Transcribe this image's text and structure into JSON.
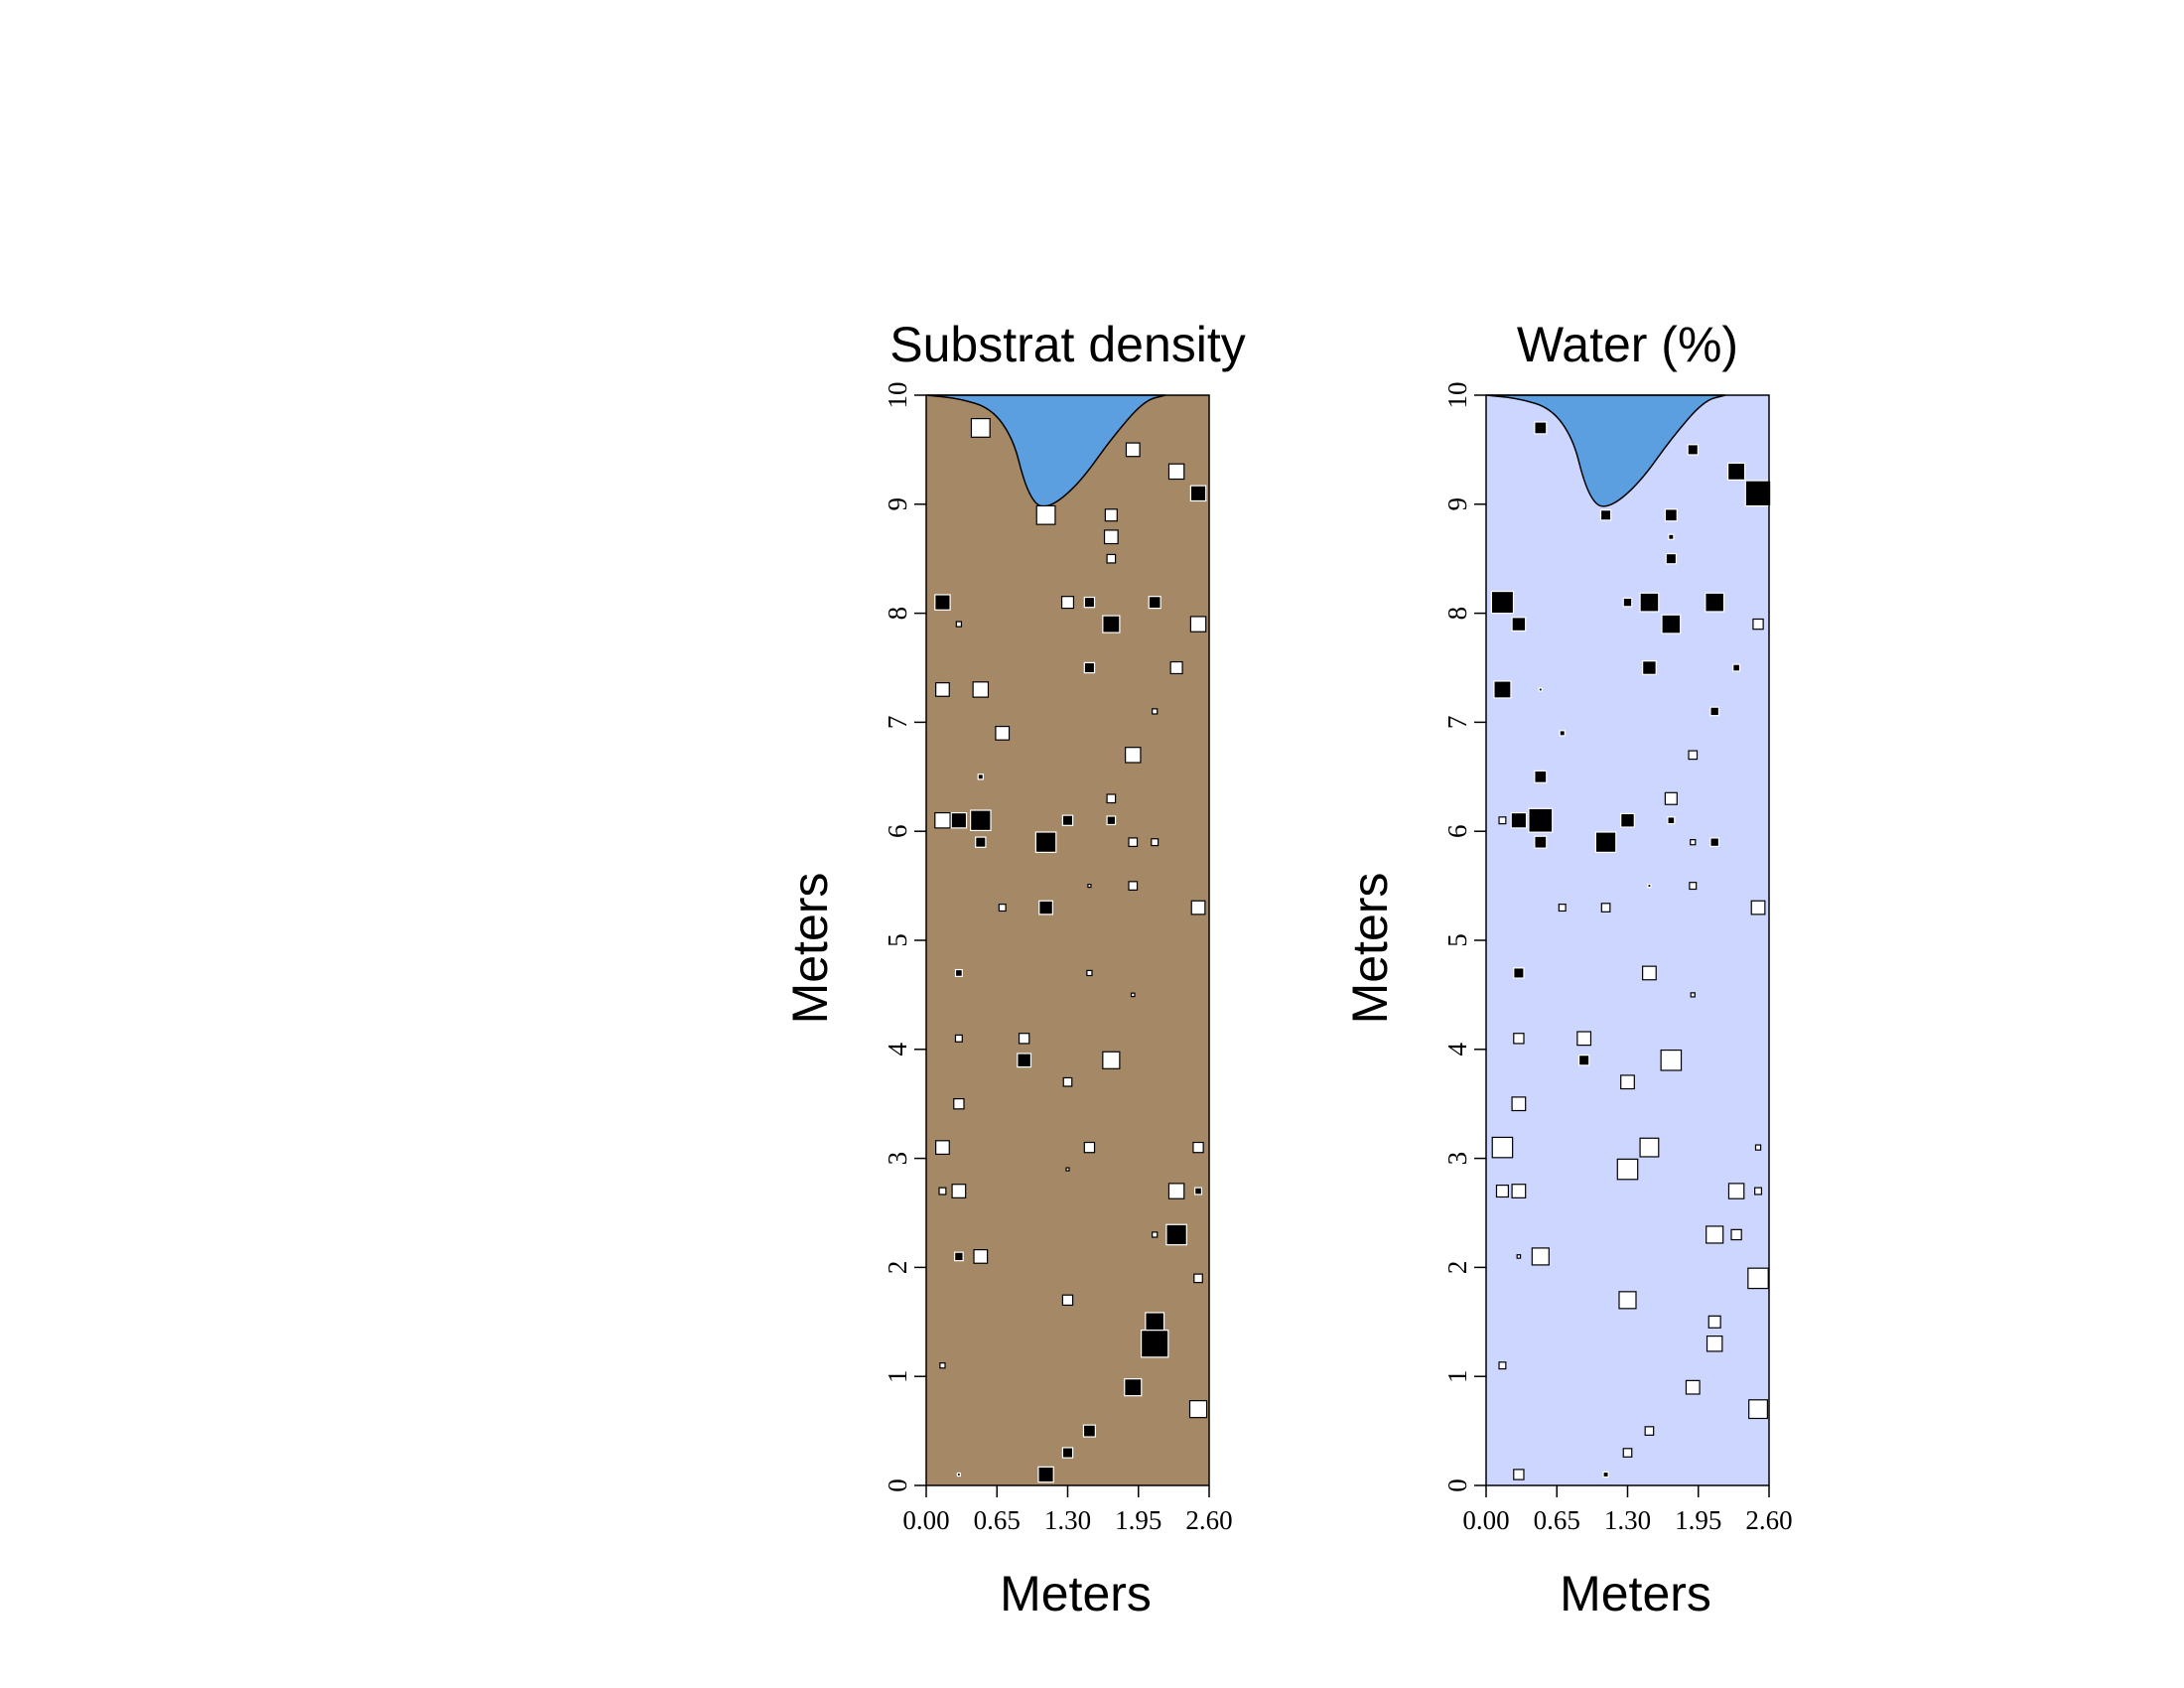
{
  "colors": {
    "substrate_bg": "#A58966",
    "water_bg": "#CCD6FF",
    "pit_fill": "#5B9FE0",
    "positive": "#000000",
    "negative": "#FFFFFF",
    "outline": "#000000"
  },
  "chart_data": [
    {
      "type": "scatter",
      "title": "Substrat density",
      "xlabel": "Meters",
      "ylabel": "Meters",
      "xlim": [
        0,
        2.6
      ],
      "ylim": [
        0,
        10
      ],
      "xticks": [
        "0.00",
        "0.65",
        "1.30",
        "1.95",
        "2.60"
      ],
      "yticks": [
        "0",
        "1",
        "2",
        "3",
        "4",
        "5",
        "6",
        "7",
        "8",
        "9",
        "10"
      ],
      "marker": "square",
      "size_meaning": "relative magnitude 0-1; black = above mean, white = below mean",
      "background": "substrate_bg",
      "pit_profile": [
        [
          0.0,
          10.0
        ],
        [
          0.3,
          9.97
        ],
        [
          0.6,
          9.88
        ],
        [
          0.8,
          9.6
        ],
        [
          0.9,
          9.2
        ],
        [
          1.0,
          9.0
        ],
        [
          1.1,
          8.97
        ],
        [
          1.25,
          9.05
        ],
        [
          1.45,
          9.25
        ],
        [
          1.7,
          9.6
        ],
        [
          2.0,
          9.95
        ],
        [
          2.2,
          10.0
        ]
      ],
      "points": [
        {
          "x": 0.5,
          "y": 9.7,
          "size": 0.55,
          "sign": "neg"
        },
        {
          "x": 1.9,
          "y": 9.5,
          "size": 0.4,
          "sign": "neg"
        },
        {
          "x": 2.3,
          "y": 9.3,
          "size": 0.45,
          "sign": "neg"
        },
        {
          "x": 2.5,
          "y": 9.1,
          "size": 0.45,
          "sign": "pos"
        },
        {
          "x": 1.1,
          "y": 8.9,
          "size": 0.55,
          "sign": "neg"
        },
        {
          "x": 1.7,
          "y": 8.9,
          "size": 0.35,
          "sign": "neg"
        },
        {
          "x": 1.7,
          "y": 8.7,
          "size": 0.4,
          "sign": "neg"
        },
        {
          "x": 1.7,
          "y": 8.5,
          "size": 0.25,
          "sign": "neg"
        },
        {
          "x": 0.15,
          "y": 8.1,
          "size": 0.45,
          "sign": "pos"
        },
        {
          "x": 1.3,
          "y": 8.1,
          "size": 0.35,
          "sign": "neg"
        },
        {
          "x": 1.5,
          "y": 8.1,
          "size": 0.3,
          "sign": "pos"
        },
        {
          "x": 2.1,
          "y": 8.1,
          "size": 0.35,
          "sign": "pos"
        },
        {
          "x": 0.3,
          "y": 7.9,
          "size": 0.15,
          "sign": "neg"
        },
        {
          "x": 1.7,
          "y": 7.9,
          "size": 0.5,
          "sign": "pos"
        },
        {
          "x": 2.5,
          "y": 7.9,
          "size": 0.45,
          "sign": "neg"
        },
        {
          "x": 1.5,
          "y": 7.5,
          "size": 0.3,
          "sign": "pos"
        },
        {
          "x": 2.3,
          "y": 7.5,
          "size": 0.35,
          "sign": "neg"
        },
        {
          "x": 0.15,
          "y": 7.3,
          "size": 0.4,
          "sign": "neg"
        },
        {
          "x": 0.5,
          "y": 7.3,
          "size": 0.45,
          "sign": "neg"
        },
        {
          "x": 2.1,
          "y": 7.1,
          "size": 0.15,
          "sign": "neg"
        },
        {
          "x": 0.7,
          "y": 6.9,
          "size": 0.4,
          "sign": "neg"
        },
        {
          "x": 1.9,
          "y": 6.7,
          "size": 0.45,
          "sign": "neg"
        },
        {
          "x": 0.5,
          "y": 6.5,
          "size": 0.15,
          "sign": "pos"
        },
        {
          "x": 1.7,
          "y": 6.3,
          "size": 0.25,
          "sign": "neg"
        },
        {
          "x": 0.15,
          "y": 6.1,
          "size": 0.45,
          "sign": "neg"
        },
        {
          "x": 0.3,
          "y": 6.1,
          "size": 0.45,
          "sign": "pos"
        },
        {
          "x": 0.5,
          "y": 6.1,
          "size": 0.6,
          "sign": "pos"
        },
        {
          "x": 1.3,
          "y": 6.1,
          "size": 0.3,
          "sign": "pos"
        },
        {
          "x": 1.7,
          "y": 6.1,
          "size": 0.25,
          "sign": "pos"
        },
        {
          "x": 0.5,
          "y": 5.9,
          "size": 0.3,
          "sign": "pos"
        },
        {
          "x": 1.1,
          "y": 5.9,
          "size": 0.6,
          "sign": "pos"
        },
        {
          "x": 1.9,
          "y": 5.9,
          "size": 0.25,
          "sign": "neg"
        },
        {
          "x": 2.1,
          "y": 5.9,
          "size": 0.2,
          "sign": "neg"
        },
        {
          "x": 1.5,
          "y": 5.5,
          "size": 0.08,
          "sign": "neg"
        },
        {
          "x": 1.9,
          "y": 5.5,
          "size": 0.25,
          "sign": "neg"
        },
        {
          "x": 0.7,
          "y": 5.3,
          "size": 0.2,
          "sign": "neg"
        },
        {
          "x": 1.1,
          "y": 5.3,
          "size": 0.4,
          "sign": "pos"
        },
        {
          "x": 2.5,
          "y": 5.3,
          "size": 0.4,
          "sign": "neg"
        },
        {
          "x": 0.3,
          "y": 4.7,
          "size": 0.2,
          "sign": "pos"
        },
        {
          "x": 1.5,
          "y": 4.7,
          "size": 0.15,
          "sign": "neg"
        },
        {
          "x": 1.9,
          "y": 4.5,
          "size": 0.1,
          "sign": "neg"
        },
        {
          "x": 0.3,
          "y": 4.1,
          "size": 0.2,
          "sign": "neg"
        },
        {
          "x": 0.9,
          "y": 4.1,
          "size": 0.3,
          "sign": "neg"
        },
        {
          "x": 0.9,
          "y": 3.9,
          "size": 0.4,
          "sign": "pos"
        },
        {
          "x": 1.7,
          "y": 3.9,
          "size": 0.5,
          "sign": "neg"
        },
        {
          "x": 1.3,
          "y": 3.7,
          "size": 0.25,
          "sign": "neg"
        },
        {
          "x": 0.3,
          "y": 3.5,
          "size": 0.3,
          "sign": "neg"
        },
        {
          "x": 0.15,
          "y": 3.1,
          "size": 0.4,
          "sign": "neg"
        },
        {
          "x": 1.5,
          "y": 3.1,
          "size": 0.3,
          "sign": "neg"
        },
        {
          "x": 2.5,
          "y": 3.1,
          "size": 0.3,
          "sign": "neg"
        },
        {
          "x": 1.3,
          "y": 2.9,
          "size": 0.08,
          "sign": "neg"
        },
        {
          "x": 0.15,
          "y": 2.7,
          "size": 0.2,
          "sign": "neg"
        },
        {
          "x": 0.3,
          "y": 2.7,
          "size": 0.4,
          "sign": "neg"
        },
        {
          "x": 2.3,
          "y": 2.7,
          "size": 0.45,
          "sign": "neg"
        },
        {
          "x": 2.5,
          "y": 2.7,
          "size": 0.2,
          "sign": "pos"
        },
        {
          "x": 2.1,
          "y": 2.3,
          "size": 0.15,
          "sign": "neg"
        },
        {
          "x": 2.3,
          "y": 2.3,
          "size": 0.6,
          "sign": "pos"
        },
        {
          "x": 0.3,
          "y": 2.1,
          "size": 0.25,
          "sign": "pos"
        },
        {
          "x": 0.5,
          "y": 2.1,
          "size": 0.4,
          "sign": "neg"
        },
        {
          "x": 2.5,
          "y": 1.9,
          "size": 0.25,
          "sign": "neg"
        },
        {
          "x": 1.3,
          "y": 1.7,
          "size": 0.3,
          "sign": "neg"
        },
        {
          "x": 2.1,
          "y": 1.5,
          "size": 0.55,
          "sign": "pos"
        },
        {
          "x": 2.1,
          "y": 1.3,
          "size": 0.8,
          "sign": "pos"
        },
        {
          "x": 0.15,
          "y": 1.1,
          "size": 0.15,
          "sign": "neg"
        },
        {
          "x": 1.9,
          "y": 0.9,
          "size": 0.5,
          "sign": "pos"
        },
        {
          "x": 2.5,
          "y": 0.7,
          "size": 0.5,
          "sign": "neg"
        },
        {
          "x": 1.5,
          "y": 0.5,
          "size": 0.35,
          "sign": "pos"
        },
        {
          "x": 1.3,
          "y": 0.3,
          "size": 0.3,
          "sign": "pos"
        },
        {
          "x": 1.1,
          "y": 0.1,
          "size": 0.45,
          "sign": "pos"
        },
        {
          "x": 0.3,
          "y": 0.1,
          "size": 0.05,
          "sign": "pos"
        }
      ]
    },
    {
      "type": "scatter",
      "title": "Water (%)",
      "xlabel": "Meters",
      "ylabel": "Meters",
      "xlim": [
        0,
        2.6
      ],
      "ylim": [
        0,
        10
      ],
      "xticks": [
        "0.00",
        "0.65",
        "1.30",
        "1.95",
        "2.60"
      ],
      "yticks": [
        "0",
        "1",
        "2",
        "3",
        "4",
        "5",
        "6",
        "7",
        "8",
        "9",
        "10"
      ],
      "marker": "square",
      "size_meaning": "relative magnitude 0-1; black = above mean, white = below mean",
      "background": "water_bg",
      "pit_profile": [
        [
          0.0,
          10.0
        ],
        [
          0.3,
          9.97
        ],
        [
          0.6,
          9.88
        ],
        [
          0.8,
          9.6
        ],
        [
          0.9,
          9.2
        ],
        [
          1.0,
          9.0
        ],
        [
          1.1,
          8.97
        ],
        [
          1.25,
          9.05
        ],
        [
          1.45,
          9.25
        ],
        [
          1.7,
          9.6
        ],
        [
          2.0,
          9.95
        ],
        [
          2.2,
          10.0
        ]
      ],
      "points": [
        {
          "x": 0.5,
          "y": 9.7,
          "size": 0.35,
          "sign": "pos"
        },
        {
          "x": 1.9,
          "y": 9.5,
          "size": 0.3,
          "sign": "pos"
        },
        {
          "x": 2.3,
          "y": 9.3,
          "size": 0.5,
          "sign": "pos"
        },
        {
          "x": 2.5,
          "y": 9.1,
          "size": 0.75,
          "sign": "pos"
        },
        {
          "x": 1.1,
          "y": 8.9,
          "size": 0.3,
          "sign": "pos"
        },
        {
          "x": 1.7,
          "y": 8.9,
          "size": 0.35,
          "sign": "pos"
        },
        {
          "x": 1.7,
          "y": 8.7,
          "size": 0.15,
          "sign": "pos"
        },
        {
          "x": 1.7,
          "y": 8.5,
          "size": 0.3,
          "sign": "pos"
        },
        {
          "x": 0.15,
          "y": 8.1,
          "size": 0.65,
          "sign": "pos"
        },
        {
          "x": 1.3,
          "y": 8.1,
          "size": 0.25,
          "sign": "pos"
        },
        {
          "x": 1.5,
          "y": 8.1,
          "size": 0.55,
          "sign": "pos"
        },
        {
          "x": 2.1,
          "y": 8.1,
          "size": 0.55,
          "sign": "pos"
        },
        {
          "x": 0.3,
          "y": 7.9,
          "size": 0.4,
          "sign": "pos"
        },
        {
          "x": 1.7,
          "y": 7.9,
          "size": 0.55,
          "sign": "pos"
        },
        {
          "x": 2.5,
          "y": 7.9,
          "size": 0.3,
          "sign": "neg"
        },
        {
          "x": 1.5,
          "y": 7.5,
          "size": 0.4,
          "sign": "pos"
        },
        {
          "x": 2.3,
          "y": 7.5,
          "size": 0.2,
          "sign": "pos"
        },
        {
          "x": 0.15,
          "y": 7.3,
          "size": 0.5,
          "sign": "pos"
        },
        {
          "x": 0.5,
          "y": 7.3,
          "size": 0.05,
          "sign": "pos"
        },
        {
          "x": 2.1,
          "y": 7.1,
          "size": 0.25,
          "sign": "pos"
        },
        {
          "x": 0.7,
          "y": 6.9,
          "size": 0.15,
          "sign": "pos"
        },
        {
          "x": 1.9,
          "y": 6.7,
          "size": 0.25,
          "sign": "neg"
        },
        {
          "x": 0.5,
          "y": 6.5,
          "size": 0.35,
          "sign": "pos"
        },
        {
          "x": 1.7,
          "y": 6.3,
          "size": 0.35,
          "sign": "neg"
        },
        {
          "x": 0.15,
          "y": 6.1,
          "size": 0.2,
          "sign": "neg"
        },
        {
          "x": 0.3,
          "y": 6.1,
          "size": 0.45,
          "sign": "pos"
        },
        {
          "x": 0.5,
          "y": 6.1,
          "size": 0.7,
          "sign": "pos"
        },
        {
          "x": 1.3,
          "y": 6.1,
          "size": 0.4,
          "sign": "pos"
        },
        {
          "x": 1.7,
          "y": 6.1,
          "size": 0.2,
          "sign": "pos"
        },
        {
          "x": 0.5,
          "y": 5.9,
          "size": 0.35,
          "sign": "pos"
        },
        {
          "x": 1.1,
          "y": 5.9,
          "size": 0.6,
          "sign": "pos"
        },
        {
          "x": 1.9,
          "y": 5.9,
          "size": 0.15,
          "sign": "neg"
        },
        {
          "x": 2.1,
          "y": 5.9,
          "size": 0.25,
          "sign": "pos"
        },
        {
          "x": 1.5,
          "y": 5.5,
          "size": 0.07,
          "sign": "pos"
        },
        {
          "x": 1.9,
          "y": 5.5,
          "size": 0.2,
          "sign": "neg"
        },
        {
          "x": 0.7,
          "y": 5.3,
          "size": 0.2,
          "sign": "neg"
        },
        {
          "x": 1.1,
          "y": 5.3,
          "size": 0.25,
          "sign": "neg"
        },
        {
          "x": 2.5,
          "y": 5.3,
          "size": 0.4,
          "sign": "neg"
        },
        {
          "x": 0.3,
          "y": 4.7,
          "size": 0.3,
          "sign": "pos"
        },
        {
          "x": 1.5,
          "y": 4.7,
          "size": 0.4,
          "sign": "neg"
        },
        {
          "x": 1.9,
          "y": 4.5,
          "size": 0.12,
          "sign": "neg"
        },
        {
          "x": 0.3,
          "y": 4.1,
          "size": 0.3,
          "sign": "neg"
        },
        {
          "x": 0.9,
          "y": 4.1,
          "size": 0.4,
          "sign": "neg"
        },
        {
          "x": 0.9,
          "y": 3.9,
          "size": 0.3,
          "sign": "pos"
        },
        {
          "x": 1.7,
          "y": 3.9,
          "size": 0.6,
          "sign": "neg"
        },
        {
          "x": 1.3,
          "y": 3.7,
          "size": 0.4,
          "sign": "neg"
        },
        {
          "x": 0.3,
          "y": 3.5,
          "size": 0.4,
          "sign": "neg"
        },
        {
          "x": 0.15,
          "y": 3.1,
          "size": 0.6,
          "sign": "neg"
        },
        {
          "x": 1.5,
          "y": 3.1,
          "size": 0.55,
          "sign": "neg"
        },
        {
          "x": 2.5,
          "y": 3.1,
          "size": 0.15,
          "sign": "neg"
        },
        {
          "x": 1.3,
          "y": 2.9,
          "size": 0.6,
          "sign": "neg"
        },
        {
          "x": 0.15,
          "y": 2.7,
          "size": 0.35,
          "sign": "neg"
        },
        {
          "x": 0.3,
          "y": 2.7,
          "size": 0.4,
          "sign": "neg"
        },
        {
          "x": 2.3,
          "y": 2.7,
          "size": 0.45,
          "sign": "neg"
        },
        {
          "x": 2.5,
          "y": 2.7,
          "size": 0.2,
          "sign": "neg"
        },
        {
          "x": 2.1,
          "y": 2.3,
          "size": 0.5,
          "sign": "neg"
        },
        {
          "x": 2.3,
          "y": 2.3,
          "size": 0.3,
          "sign": "neg"
        },
        {
          "x": 0.3,
          "y": 2.1,
          "size": 0.1,
          "sign": "neg"
        },
        {
          "x": 0.5,
          "y": 2.1,
          "size": 0.5,
          "sign": "neg"
        },
        {
          "x": 2.5,
          "y": 1.9,
          "size": 0.6,
          "sign": "neg"
        },
        {
          "x": 1.3,
          "y": 1.7,
          "size": 0.5,
          "sign": "neg"
        },
        {
          "x": 2.1,
          "y": 1.5,
          "size": 0.35,
          "sign": "neg"
        },
        {
          "x": 2.1,
          "y": 1.3,
          "size": 0.45,
          "sign": "neg"
        },
        {
          "x": 0.15,
          "y": 1.1,
          "size": 0.2,
          "sign": "neg"
        },
        {
          "x": 1.9,
          "y": 0.9,
          "size": 0.4,
          "sign": "neg"
        },
        {
          "x": 2.5,
          "y": 0.7,
          "size": 0.55,
          "sign": "neg"
        },
        {
          "x": 1.5,
          "y": 0.5,
          "size": 0.25,
          "sign": "neg"
        },
        {
          "x": 1.3,
          "y": 0.3,
          "size": 0.25,
          "sign": "neg"
        },
        {
          "x": 1.1,
          "y": 0.1,
          "size": 0.15,
          "sign": "pos"
        },
        {
          "x": 0.3,
          "y": 0.1,
          "size": 0.3,
          "sign": "neg"
        }
      ]
    }
  ]
}
